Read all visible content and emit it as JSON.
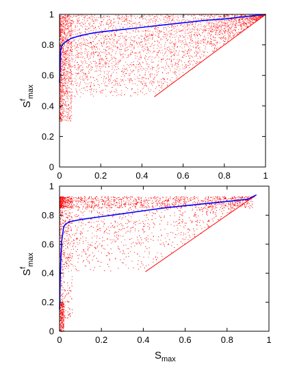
{
  "chart_data": [
    {
      "type": "scatter",
      "id": "top",
      "xlabel": "",
      "ylabel": {
        "main": "S",
        "sup": "f",
        "sub": "max"
      },
      "xlim": [
        0,
        1
      ],
      "ylim": [
        0,
        1
      ],
      "xticks": [
        0,
        0.2,
        0.4,
        0.6,
        0.8,
        1
      ],
      "yticks": [
        0,
        0.2,
        0.4,
        0.6,
        0.8,
        1
      ],
      "xtick_labels": [
        "0",
        "0.2",
        "0.4",
        "0.6",
        "0.8",
        "1"
      ],
      "ytick_labels": [
        "0",
        "0.2",
        "0.4",
        "0.6",
        "0.8",
        "1"
      ],
      "series": [
        {
          "kind": "scatter",
          "color": "#ff0000",
          "description_points": "dense cloud above the diagonal; lower boundary ~0.46 from x≈0.02 to 0.46, then along y=x to (1,1)",
          "cloud": {
            "x_floor_break": 0.46,
            "y_floor": 0.46,
            "y_top": 1.0
          }
        },
        {
          "kind": "line",
          "color": "#0000ff",
          "x": [
            0.0,
            0.005,
            0.01,
            0.02,
            0.04,
            0.06,
            0.1,
            0.15,
            0.2,
            0.3,
            0.4,
            0.5,
            0.6,
            0.7,
            0.8,
            0.9,
            1.0
          ],
          "y": [
            0.55,
            0.76,
            0.79,
            0.81,
            0.83,
            0.845,
            0.86,
            0.875,
            0.885,
            0.9,
            0.915,
            0.93,
            0.945,
            0.96,
            0.97,
            0.985,
            1.0
          ]
        }
      ],
      "guide_line": {
        "x": [
          0.46,
          1.0
        ],
        "y": [
          0.46,
          1.0
        ],
        "color": "#ff0000"
      }
    },
    {
      "type": "scatter",
      "id": "bottom",
      "xlabel": {
        "main": "S",
        "sub": "max"
      },
      "ylabel": {
        "main": "S",
        "sup": "f",
        "sub": "max"
      },
      "xlim": [
        0,
        1
      ],
      "ylim": [
        0,
        1
      ],
      "xticks": [
        0,
        0.2,
        0.4,
        0.6,
        0.8,
        1
      ],
      "yticks": [
        0,
        0.2,
        0.4,
        0.6,
        0.8,
        1
      ],
      "xtick_labels": [
        "0",
        "0.2",
        "0.4",
        "0.6",
        "0.8",
        "1"
      ],
      "ytick_labels": [
        "0",
        "0.2",
        "0.4",
        "0.6",
        "0.8",
        "1"
      ],
      "series": [
        {
          "kind": "scatter",
          "color": "#ff0000",
          "description_points": "dense band at y≈0.85–0.93, cloud above diagonal, lower boundary ~0.41 from x≈0.02 to 0.41, then along y=x to (0.93,0.93)",
          "cloud": {
            "x_floor_break": 0.41,
            "y_floor": 0.41,
            "y_top": 0.93
          }
        },
        {
          "kind": "line",
          "color": "#0000ff",
          "x": [
            0.0,
            0.005,
            0.01,
            0.02,
            0.03,
            0.05,
            0.1,
            0.2,
            0.3,
            0.4,
            0.5,
            0.6,
            0.7,
            0.8,
            0.9,
            0.94
          ],
          "y": [
            0.15,
            0.45,
            0.62,
            0.72,
            0.74,
            0.755,
            0.77,
            0.79,
            0.81,
            0.83,
            0.85,
            0.865,
            0.88,
            0.895,
            0.91,
            0.94
          ]
        }
      ],
      "guide_line": {
        "x": [
          0.41,
          0.94
        ],
        "y": [
          0.41,
          0.94
        ],
        "color": "#ff0000"
      }
    }
  ]
}
